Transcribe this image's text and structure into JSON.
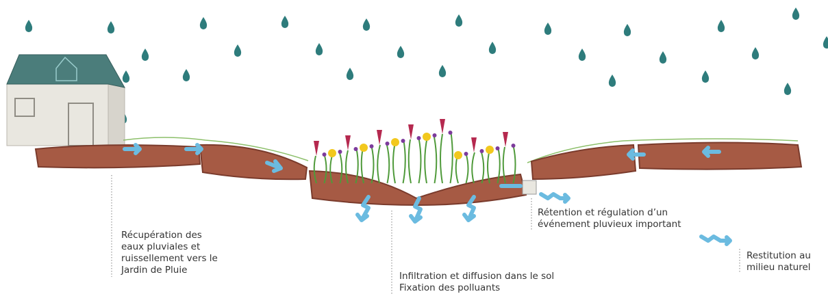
{
  "labels": [
    {
      "lines": [
        "Récupération des",
        "eaux pluviales et",
        "ruissellement vers le",
        "Jardin de Pluie"
      ]
    },
    {
      "lines": [
        "Infiltration et diffusion dans le sol",
        "Fixation des polluants"
      ]
    },
    {
      "lines": [
        "Rétention et régulation d’un",
        "événement pluvieux important"
      ]
    },
    {
      "lines": [
        "Restitution au",
        "milieu naturel"
      ]
    }
  ]
}
